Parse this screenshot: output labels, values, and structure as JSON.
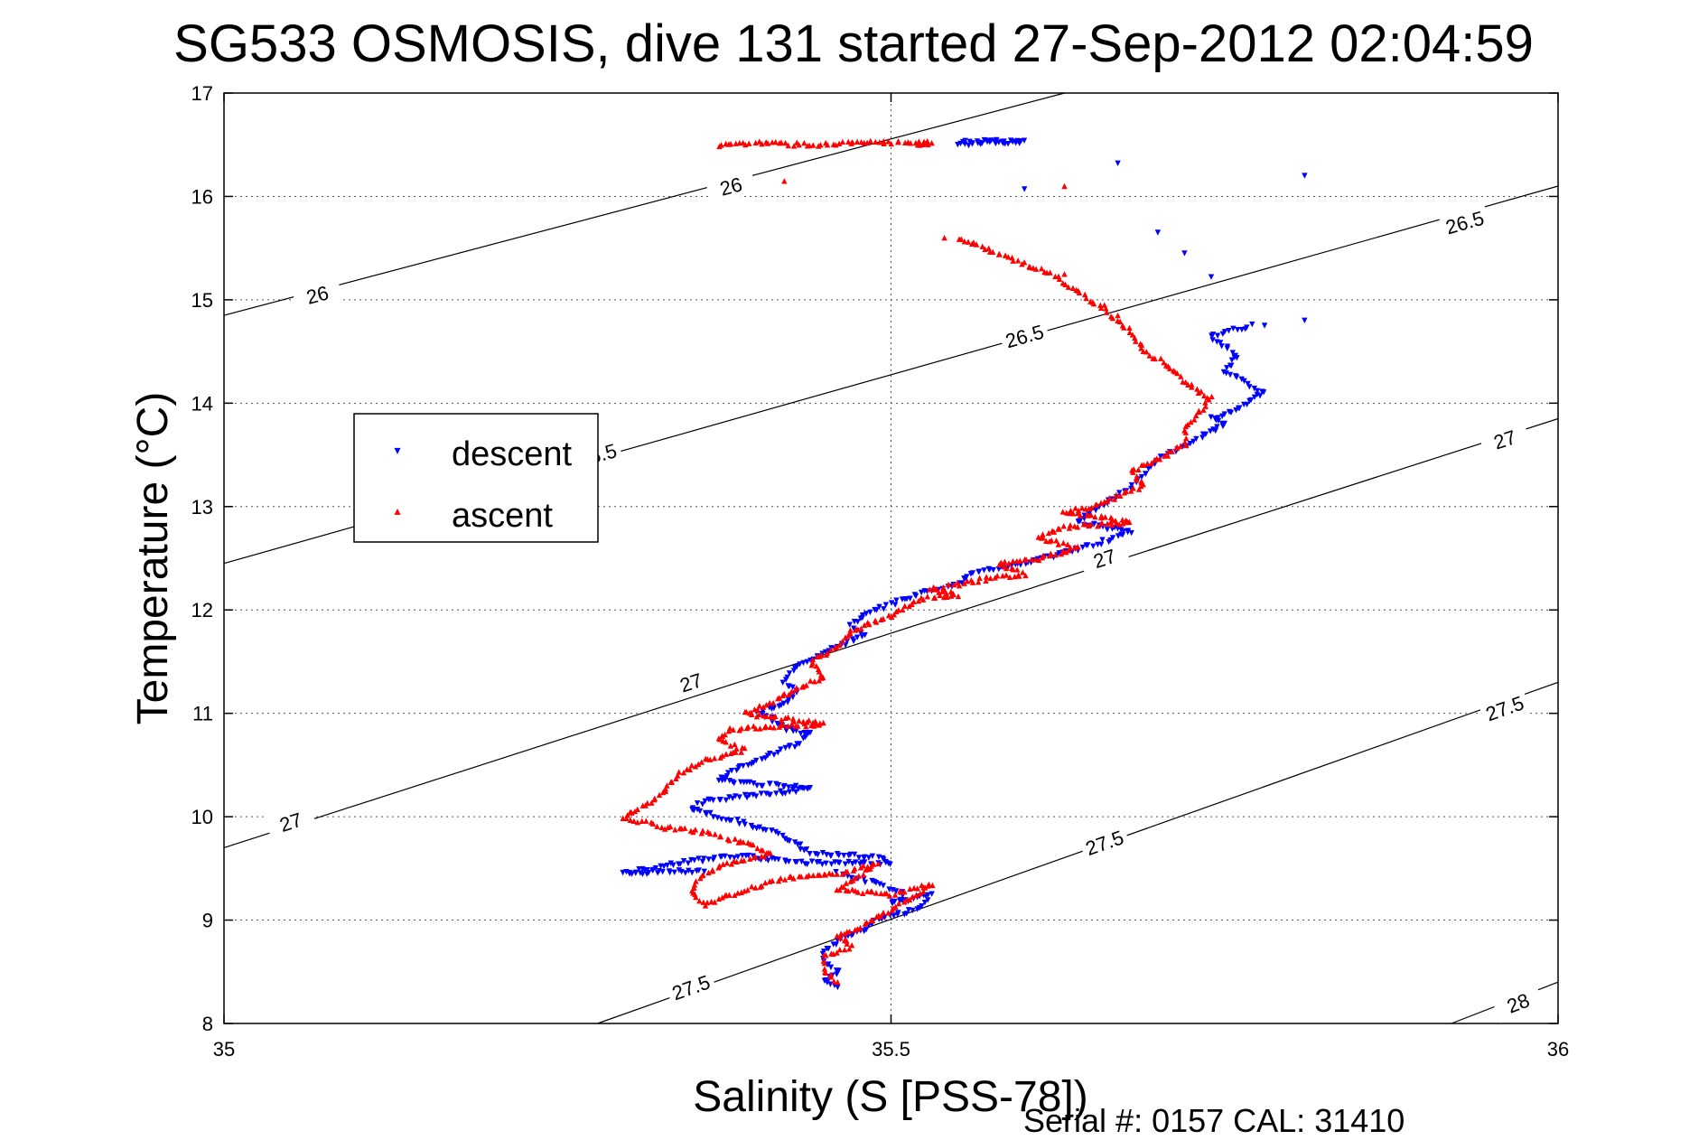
{
  "chart_data": {
    "type": "scatter",
    "title": "SG533 OSMOSIS, dive 131 started 27-Sep-2012 02:04:59",
    "xlabel": "Salinity (S [PSS-78])",
    "ylabel": "Temperature (°C)",
    "xlim": [
      35,
      36
    ],
    "ylim": [
      8,
      17
    ],
    "x_ticks": [
      "35",
      "35.5",
      "36"
    ],
    "y_ticks": [
      "8",
      "9",
      "10",
      "11",
      "12",
      "13",
      "14",
      "15",
      "16",
      "17"
    ],
    "grid": "on",
    "legend_position": "left",
    "footer": "Serial #: 0157  CAL: 31410",
    "density_contours": [
      {
        "label": "26",
        "s": [
          35,
          35.63
        ],
        "t": [
          14.85,
          17.0
        ],
        "labels_at": [
          [
            35.07,
            15.05
          ],
          [
            35.38,
            16.1
          ]
        ]
      },
      {
        "label": "26.5",
        "s": [
          35,
          36
        ],
        "t": [
          12.45,
          16.1
        ],
        "labels_at": [
          [
            35.28,
            13.5
          ],
          [
            35.6,
            14.65
          ],
          [
            35.93,
            15.75
          ]
        ]
      },
      {
        "label": "27",
        "s": [
          35,
          36
        ],
        "t": [
          9.7,
          13.85
        ],
        "labels_at": [
          [
            35.05,
            9.95
          ],
          [
            35.35,
            11.3
          ],
          [
            35.66,
            12.5
          ],
          [
            35.96,
            13.65
          ]
        ]
      },
      {
        "label": "27.5",
        "s": [
          35.28,
          36
        ],
        "t": [
          8.0,
          11.3
        ],
        "labels_at": [
          [
            35.35,
            8.35
          ],
          [
            35.66,
            9.75
          ],
          [
            35.96,
            11.05
          ]
        ]
      },
      {
        "label": "28",
        "s": [
          35.92,
          36
        ],
        "t": [
          8.0,
          8.4
        ],
        "labels_at": [
          [
            35.97,
            8.2
          ]
        ]
      }
    ],
    "series": [
      {
        "name": "descent",
        "color": "#0000ff",
        "marker": "triangle-down",
        "path": [
          [
            35.554,
            16.53
          ],
          [
            35.58,
            16.53
          ],
          [
            35.6,
            16.53
          ],
          [
            35.55,
            16.5
          ],
          [
            35.77,
            14.75
          ],
          [
            35.74,
            14.65
          ],
          [
            35.76,
            14.45
          ],
          [
            35.75,
            14.3
          ],
          [
            35.765,
            14.2
          ],
          [
            35.78,
            14.1
          ],
          [
            35.76,
            13.95
          ],
          [
            35.74,
            13.85
          ],
          [
            35.75,
            13.8
          ],
          [
            35.73,
            13.65
          ],
          [
            35.7,
            13.45
          ],
          [
            35.69,
            13.3
          ],
          [
            35.67,
            13.1
          ],
          [
            35.65,
            12.95
          ],
          [
            35.64,
            12.85
          ],
          [
            35.66,
            12.8
          ],
          [
            35.68,
            12.75
          ],
          [
            35.67,
            12.7
          ],
          [
            35.63,
            12.55
          ],
          [
            35.6,
            12.45
          ],
          [
            35.58,
            12.4
          ],
          [
            35.56,
            12.35
          ],
          [
            35.55,
            12.25
          ],
          [
            35.52,
            12.15
          ],
          [
            35.5,
            12.05
          ],
          [
            35.48,
            11.95
          ],
          [
            35.47,
            11.85
          ],
          [
            35.48,
            11.75
          ],
          [
            35.47,
            11.7
          ],
          [
            35.45,
            11.6
          ],
          [
            35.44,
            11.5
          ],
          [
            35.43,
            11.45
          ],
          [
            35.42,
            11.3
          ],
          [
            35.43,
            11.2
          ],
          [
            35.42,
            11.1
          ],
          [
            35.4,
            11.0
          ],
          [
            35.41,
            10.95
          ],
          [
            35.42,
            10.85
          ],
          [
            35.44,
            10.8
          ],
          [
            35.43,
            10.7
          ],
          [
            35.41,
            10.6
          ],
          [
            35.39,
            10.5
          ],
          [
            35.37,
            10.35
          ],
          [
            35.44,
            10.27
          ],
          [
            35.36,
            10.15
          ],
          [
            35.35,
            10.08
          ],
          [
            35.37,
            10.0
          ],
          [
            35.4,
            9.9
          ],
          [
            35.42,
            9.8
          ],
          [
            35.44,
            9.65
          ],
          [
            35.47,
            9.62
          ],
          [
            35.49,
            9.6
          ],
          [
            35.5,
            9.55
          ],
          [
            35.43,
            9.55
          ],
          [
            35.39,
            9.62
          ],
          [
            35.35,
            9.57
          ],
          [
            35.3,
            9.45
          ],
          [
            35.33,
            9.47
          ],
          [
            35.36,
            9.47
          ],
          [
            35.46,
            9.45
          ],
          [
            35.49,
            9.35
          ],
          [
            35.51,
            9.25
          ],
          [
            35.5,
            9.15
          ],
          [
            35.53,
            9.25
          ],
          [
            35.52,
            9.1
          ],
          [
            35.49,
            9.0
          ],
          [
            35.48,
            8.9
          ],
          [
            35.46,
            8.8
          ],
          [
            35.45,
            8.7
          ],
          [
            35.45,
            8.6
          ],
          [
            35.46,
            8.5
          ],
          [
            35.45,
            8.4
          ],
          [
            35.46,
            8.35
          ]
        ]
      },
      {
        "name": "ascent",
        "color": "#ff0000",
        "marker": "triangle-up",
        "path": [
          [
            35.37,
            16.5
          ],
          [
            35.4,
            16.52
          ],
          [
            35.44,
            16.5
          ],
          [
            35.48,
            16.52
          ],
          [
            35.52,
            16.52
          ],
          [
            35.53,
            16.52
          ],
          [
            35.52,
            16.5
          ],
          [
            35.63,
            16.1
          ],
          [
            35.55,
            15.6
          ],
          [
            35.62,
            15.25
          ],
          [
            35.66,
            14.9
          ],
          [
            35.68,
            14.7
          ],
          [
            35.69,
            14.5
          ],
          [
            35.71,
            14.35
          ],
          [
            35.72,
            14.2
          ],
          [
            35.74,
            14.05
          ],
          [
            35.73,
            13.9
          ],
          [
            35.72,
            13.75
          ],
          [
            35.72,
            13.6
          ],
          [
            35.7,
            13.45
          ],
          [
            35.68,
            13.35
          ],
          [
            35.69,
            13.2
          ],
          [
            35.67,
            13.1
          ],
          [
            35.65,
            13.0
          ],
          [
            35.63,
            12.95
          ],
          [
            35.68,
            12.85
          ],
          [
            35.63,
            12.8
          ],
          [
            35.61,
            12.7
          ],
          [
            35.64,
            12.6
          ],
          [
            35.61,
            12.5
          ],
          [
            35.58,
            12.45
          ],
          [
            35.6,
            12.35
          ],
          [
            35.57,
            12.3
          ],
          [
            35.53,
            12.2
          ],
          [
            35.55,
            12.15
          ],
          [
            35.52,
            12.1
          ],
          [
            35.5,
            11.95
          ],
          [
            35.47,
            11.8
          ],
          [
            35.46,
            11.65
          ],
          [
            35.44,
            11.5
          ],
          [
            35.45,
            11.35
          ],
          [
            35.43,
            11.25
          ],
          [
            35.41,
            11.1
          ],
          [
            35.39,
            11.0
          ],
          [
            35.45,
            10.9
          ],
          [
            35.38,
            10.85
          ],
          [
            35.37,
            10.75
          ],
          [
            35.39,
            10.65
          ],
          [
            35.36,
            10.55
          ],
          [
            35.34,
            10.4
          ],
          [
            35.33,
            10.25
          ],
          [
            35.32,
            10.15
          ],
          [
            35.3,
            10.0
          ],
          [
            35.33,
            9.9
          ],
          [
            35.36,
            9.85
          ],
          [
            35.39,
            9.75
          ],
          [
            35.41,
            9.65
          ],
          [
            35.38,
            9.55
          ],
          [
            35.36,
            9.45
          ],
          [
            35.35,
            9.3
          ],
          [
            35.36,
            9.15
          ],
          [
            35.38,
            9.25
          ],
          [
            35.42,
            9.4
          ],
          [
            35.46,
            9.45
          ],
          [
            35.49,
            9.55
          ],
          [
            35.46,
            9.3
          ],
          [
            35.5,
            9.25
          ],
          [
            35.53,
            9.35
          ],
          [
            35.5,
            9.1
          ],
          [
            35.48,
            8.95
          ],
          [
            35.46,
            8.85
          ],
          [
            35.47,
            8.75
          ],
          [
            35.45,
            8.65
          ],
          [
            35.45,
            8.5
          ],
          [
            35.46,
            8.4
          ]
        ]
      }
    ],
    "scatter_outliers": {
      "descent": [
        [
          35.67,
          16.32
        ],
        [
          35.81,
          16.2
        ],
        [
          35.6,
          16.07
        ],
        [
          35.7,
          15.65
        ],
        [
          35.72,
          15.45
        ],
        [
          35.74,
          15.22
        ],
        [
          35.81,
          14.8
        ],
        [
          35.78,
          14.75
        ]
      ],
      "ascent": [
        [
          35.42,
          16.15
        ],
        [
          35.54,
          15.6
        ],
        [
          35.63,
          15.25
        ],
        [
          35.66,
          14.95
        ],
        [
          35.67,
          14.85
        ]
      ]
    }
  }
}
